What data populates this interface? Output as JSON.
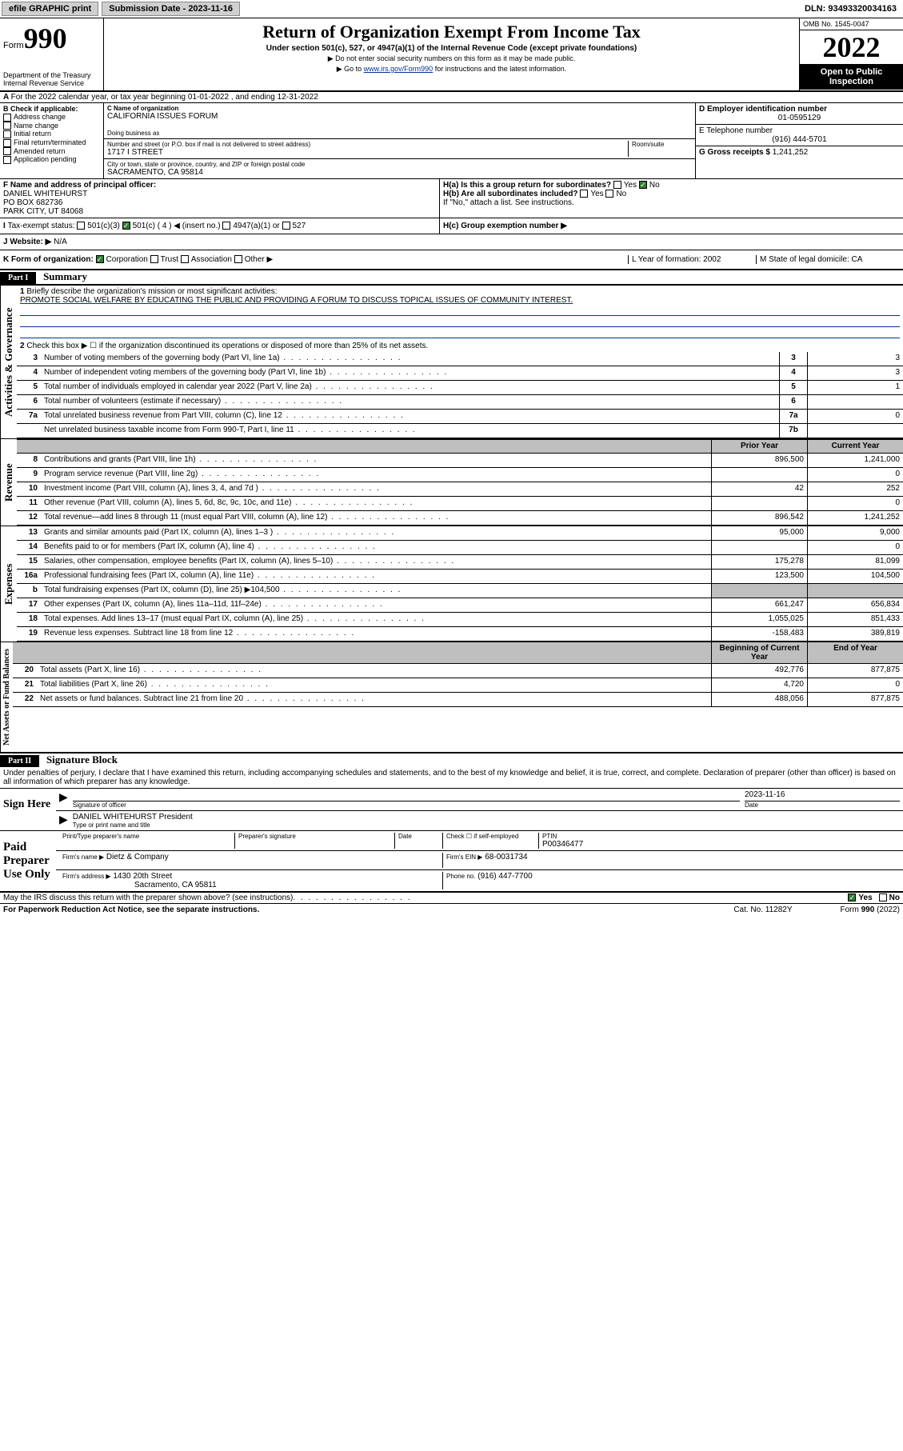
{
  "topbar": {
    "efile": "efile GRAPHIC print",
    "submission_label": "Submission Date - 2023-11-16",
    "dln": "DLN: 93493320034163"
  },
  "header": {
    "form_word": "Form",
    "form_num": "990",
    "dept": "Department of the Treasury\nInternal Revenue Service",
    "title": "Return of Organization Exempt From Income Tax",
    "subtitle": "Under section 501(c), 527, or 4947(a)(1) of the Internal Revenue Code (except private foundations)",
    "instr1": "▶ Do not enter social security numbers on this form as it may be made public.",
    "instr2_pre": "▶ Go to ",
    "instr2_link": "www.irs.gov/Form990",
    "instr2_post": " for instructions and the latest information.",
    "omb": "OMB No. 1545-0047",
    "year": "2022",
    "open": "Open to Public Inspection"
  },
  "line_a": "For the 2022 calendar year, or tax year beginning 01-01-2022    , and ending 12-31-2022",
  "section_b": {
    "b_label": "B Check if applicable:",
    "b_opts": [
      "Address change",
      "Name change",
      "Initial return",
      "Final return/terminated",
      "Amended return",
      "Application pending"
    ],
    "c_label": "C Name of organization",
    "org_name": "CALIFORNIA ISSUES FORUM",
    "dba_label": "Doing business as",
    "addr_label": "Number and street (or P.O. box if mail is not delivered to street address)",
    "room_label": "Room/suite",
    "street": "1717 I STREET",
    "city_label": "City or town, state or province, country, and ZIP or foreign postal code",
    "city": "SACRAMENTO, CA  95814",
    "d_label": "D Employer identification number",
    "ein": "01-0595129",
    "e_label": "E Telephone number",
    "phone": "(916) 444-5701",
    "g_label": "G Gross receipts $",
    "gross": "1,241,252",
    "f_label": "F  Name and address of principal officer:",
    "officer_name": "DANIEL WHITEHURST",
    "officer_addr1": "PO BOX 682736",
    "officer_addr2": "PARK CITY, UT  84068",
    "ha_label": "H(a)  Is this a group return for subordinates?",
    "hb_label": "H(b)  Are all subordinates included?",
    "h_note": "If \"No,\" attach a list. See instructions.",
    "hc_label": "H(c)  Group exemption number ▶",
    "yes": "Yes",
    "no": "No",
    "i_label": "Tax-exempt status:",
    "i_501c3": "501(c)(3)",
    "i_501c": "501(c) ( 4 ) ◀ (insert no.)",
    "i_4947": "4947(a)(1) or",
    "i_527": "527",
    "j_label": "Website: ▶",
    "website": "N/A",
    "k_label": "K Form of organization:",
    "k_corp": "Corporation",
    "k_trust": "Trust",
    "k_assoc": "Association",
    "k_other": "Other ▶",
    "l_label": "L Year of formation: 2002",
    "m_label": "M State of legal domicile: CA"
  },
  "part1": {
    "header": "Part I",
    "title": "Summary",
    "line1_label": "Briefly describe the organization's mission or most significant activities:",
    "mission": "PROMOTE SOCIAL WELFARE BY EDUCATING THE PUBLIC AND PROVIDING A FORUM TO DISCUSS TOPICAL ISSUES OF COMMUNITY INTEREST.",
    "line2": "Check this box ▶ ☐  if the organization discontinued its operations or disposed of more than 25% of its net assets.",
    "sections": {
      "gov": "Activities & Governance",
      "rev": "Revenue",
      "exp": "Expenses",
      "net": "Net Assets or Fund Balances"
    },
    "col_prior": "Prior Year",
    "col_current": "Current Year",
    "col_begin": "Beginning of Current Year",
    "col_end": "End of Year",
    "rows_gov": [
      {
        "n": "3",
        "d": "Number of voting members of the governing body (Part VI, line 1a)",
        "box": "3",
        "v": "3"
      },
      {
        "n": "4",
        "d": "Number of independent voting members of the governing body (Part VI, line 1b)",
        "box": "4",
        "v": "3"
      },
      {
        "n": "5",
        "d": "Total number of individuals employed in calendar year 2022 (Part V, line 2a)",
        "box": "5",
        "v": "1"
      },
      {
        "n": "6",
        "d": "Total number of volunteers (estimate if necessary)",
        "box": "6",
        "v": ""
      },
      {
        "n": "7a",
        "d": "Total unrelated business revenue from Part VIII, column (C), line 12",
        "box": "7a",
        "v": "0"
      },
      {
        "n": "",
        "d": "Net unrelated business taxable income from Form 990-T, Part I, line 11",
        "box": "7b",
        "v": ""
      }
    ],
    "rows_rev": [
      {
        "n": "8",
        "d": "Contributions and grants (Part VIII, line 1h)",
        "p": "896,500",
        "c": "1,241,000"
      },
      {
        "n": "9",
        "d": "Program service revenue (Part VIII, line 2g)",
        "p": "",
        "c": "0"
      },
      {
        "n": "10",
        "d": "Investment income (Part VIII, column (A), lines 3, 4, and 7d )",
        "p": "42",
        "c": "252"
      },
      {
        "n": "11",
        "d": "Other revenue (Part VIII, column (A), lines 5, 6d, 8c, 9c, 10c, and 11e)",
        "p": "",
        "c": "0"
      },
      {
        "n": "12",
        "d": "Total revenue—add lines 8 through 11 (must equal Part VIII, column (A), line 12)",
        "p": "896,542",
        "c": "1,241,252"
      }
    ],
    "rows_exp": [
      {
        "n": "13",
        "d": "Grants and similar amounts paid (Part IX, column (A), lines 1–3 )",
        "p": "95,000",
        "c": "9,000"
      },
      {
        "n": "14",
        "d": "Benefits paid to or for members (Part IX, column (A), line 4)",
        "p": "",
        "c": "0"
      },
      {
        "n": "15",
        "d": "Salaries, other compensation, employee benefits (Part IX, column (A), lines 5–10)",
        "p": "175,278",
        "c": "81,099"
      },
      {
        "n": "16a",
        "d": "Professional fundraising fees (Part IX, column (A), line 11e)",
        "p": "123,500",
        "c": "104,500"
      },
      {
        "n": "b",
        "d": "Total fundraising expenses (Part IX, column (D), line 25) ▶104,500",
        "p": "grey",
        "c": "grey"
      },
      {
        "n": "17",
        "d": "Other expenses (Part IX, column (A), lines 11a–11d, 11f–24e)",
        "p": "661,247",
        "c": "656,834"
      },
      {
        "n": "18",
        "d": "Total expenses. Add lines 13–17 (must equal Part IX, column (A), line 25)",
        "p": "1,055,025",
        "c": "851,433"
      },
      {
        "n": "19",
        "d": "Revenue less expenses. Subtract line 18 from line 12",
        "p": "-158,483",
        "c": "389,819"
      }
    ],
    "rows_net": [
      {
        "n": "20",
        "d": "Total assets (Part X, line 16)",
        "p": "492,776",
        "c": "877,875"
      },
      {
        "n": "21",
        "d": "Total liabilities (Part X, line 26)",
        "p": "4,720",
        "c": "0"
      },
      {
        "n": "22",
        "d": "Net assets or fund balances. Subtract line 21 from line 20",
        "p": "488,056",
        "c": "877,875"
      }
    ]
  },
  "part2": {
    "header": "Part II",
    "title": "Signature Block",
    "decl": "Under penalties of perjury, I declare that I have examined this return, including accompanying schedules and statements, and to the best of my knowledge and belief, it is true, correct, and complete. Declaration of preparer (other than officer) is based on all information of which preparer has any knowledge.",
    "sign_here": "Sign Here",
    "sig_officer": "Signature of officer",
    "sig_date": "2023-11-16",
    "date_label": "Date",
    "officer_name": "DANIEL WHITEHURST President",
    "type_name": "Type or print name and title",
    "paid": "Paid Preparer Use Only",
    "prep_name_label": "Print/Type preparer's name",
    "prep_sig_label": "Preparer's signature",
    "check_self": "Check ☐ if self-employed",
    "ptin_label": "PTIN",
    "ptin": "P00346477",
    "firm_name_label": "Firm's name    ▶",
    "firm_name": "Dietz & Company",
    "firm_ein_label": "Firm's EIN ▶",
    "firm_ein": "68-0031734",
    "firm_addr_label": "Firm's address ▶",
    "firm_addr1": "1430 20th Street",
    "firm_addr2": "Sacramento, CA  95811",
    "phone_label": "Phone no.",
    "phone": "(916) 447-7700",
    "may_irs": "May the IRS discuss this return with the preparer shown above? (see instructions)"
  },
  "footer": {
    "pra": "For Paperwork Reduction Act Notice, see the separate instructions.",
    "cat": "Cat. No. 11282Y",
    "form": "Form 990 (2022)"
  }
}
